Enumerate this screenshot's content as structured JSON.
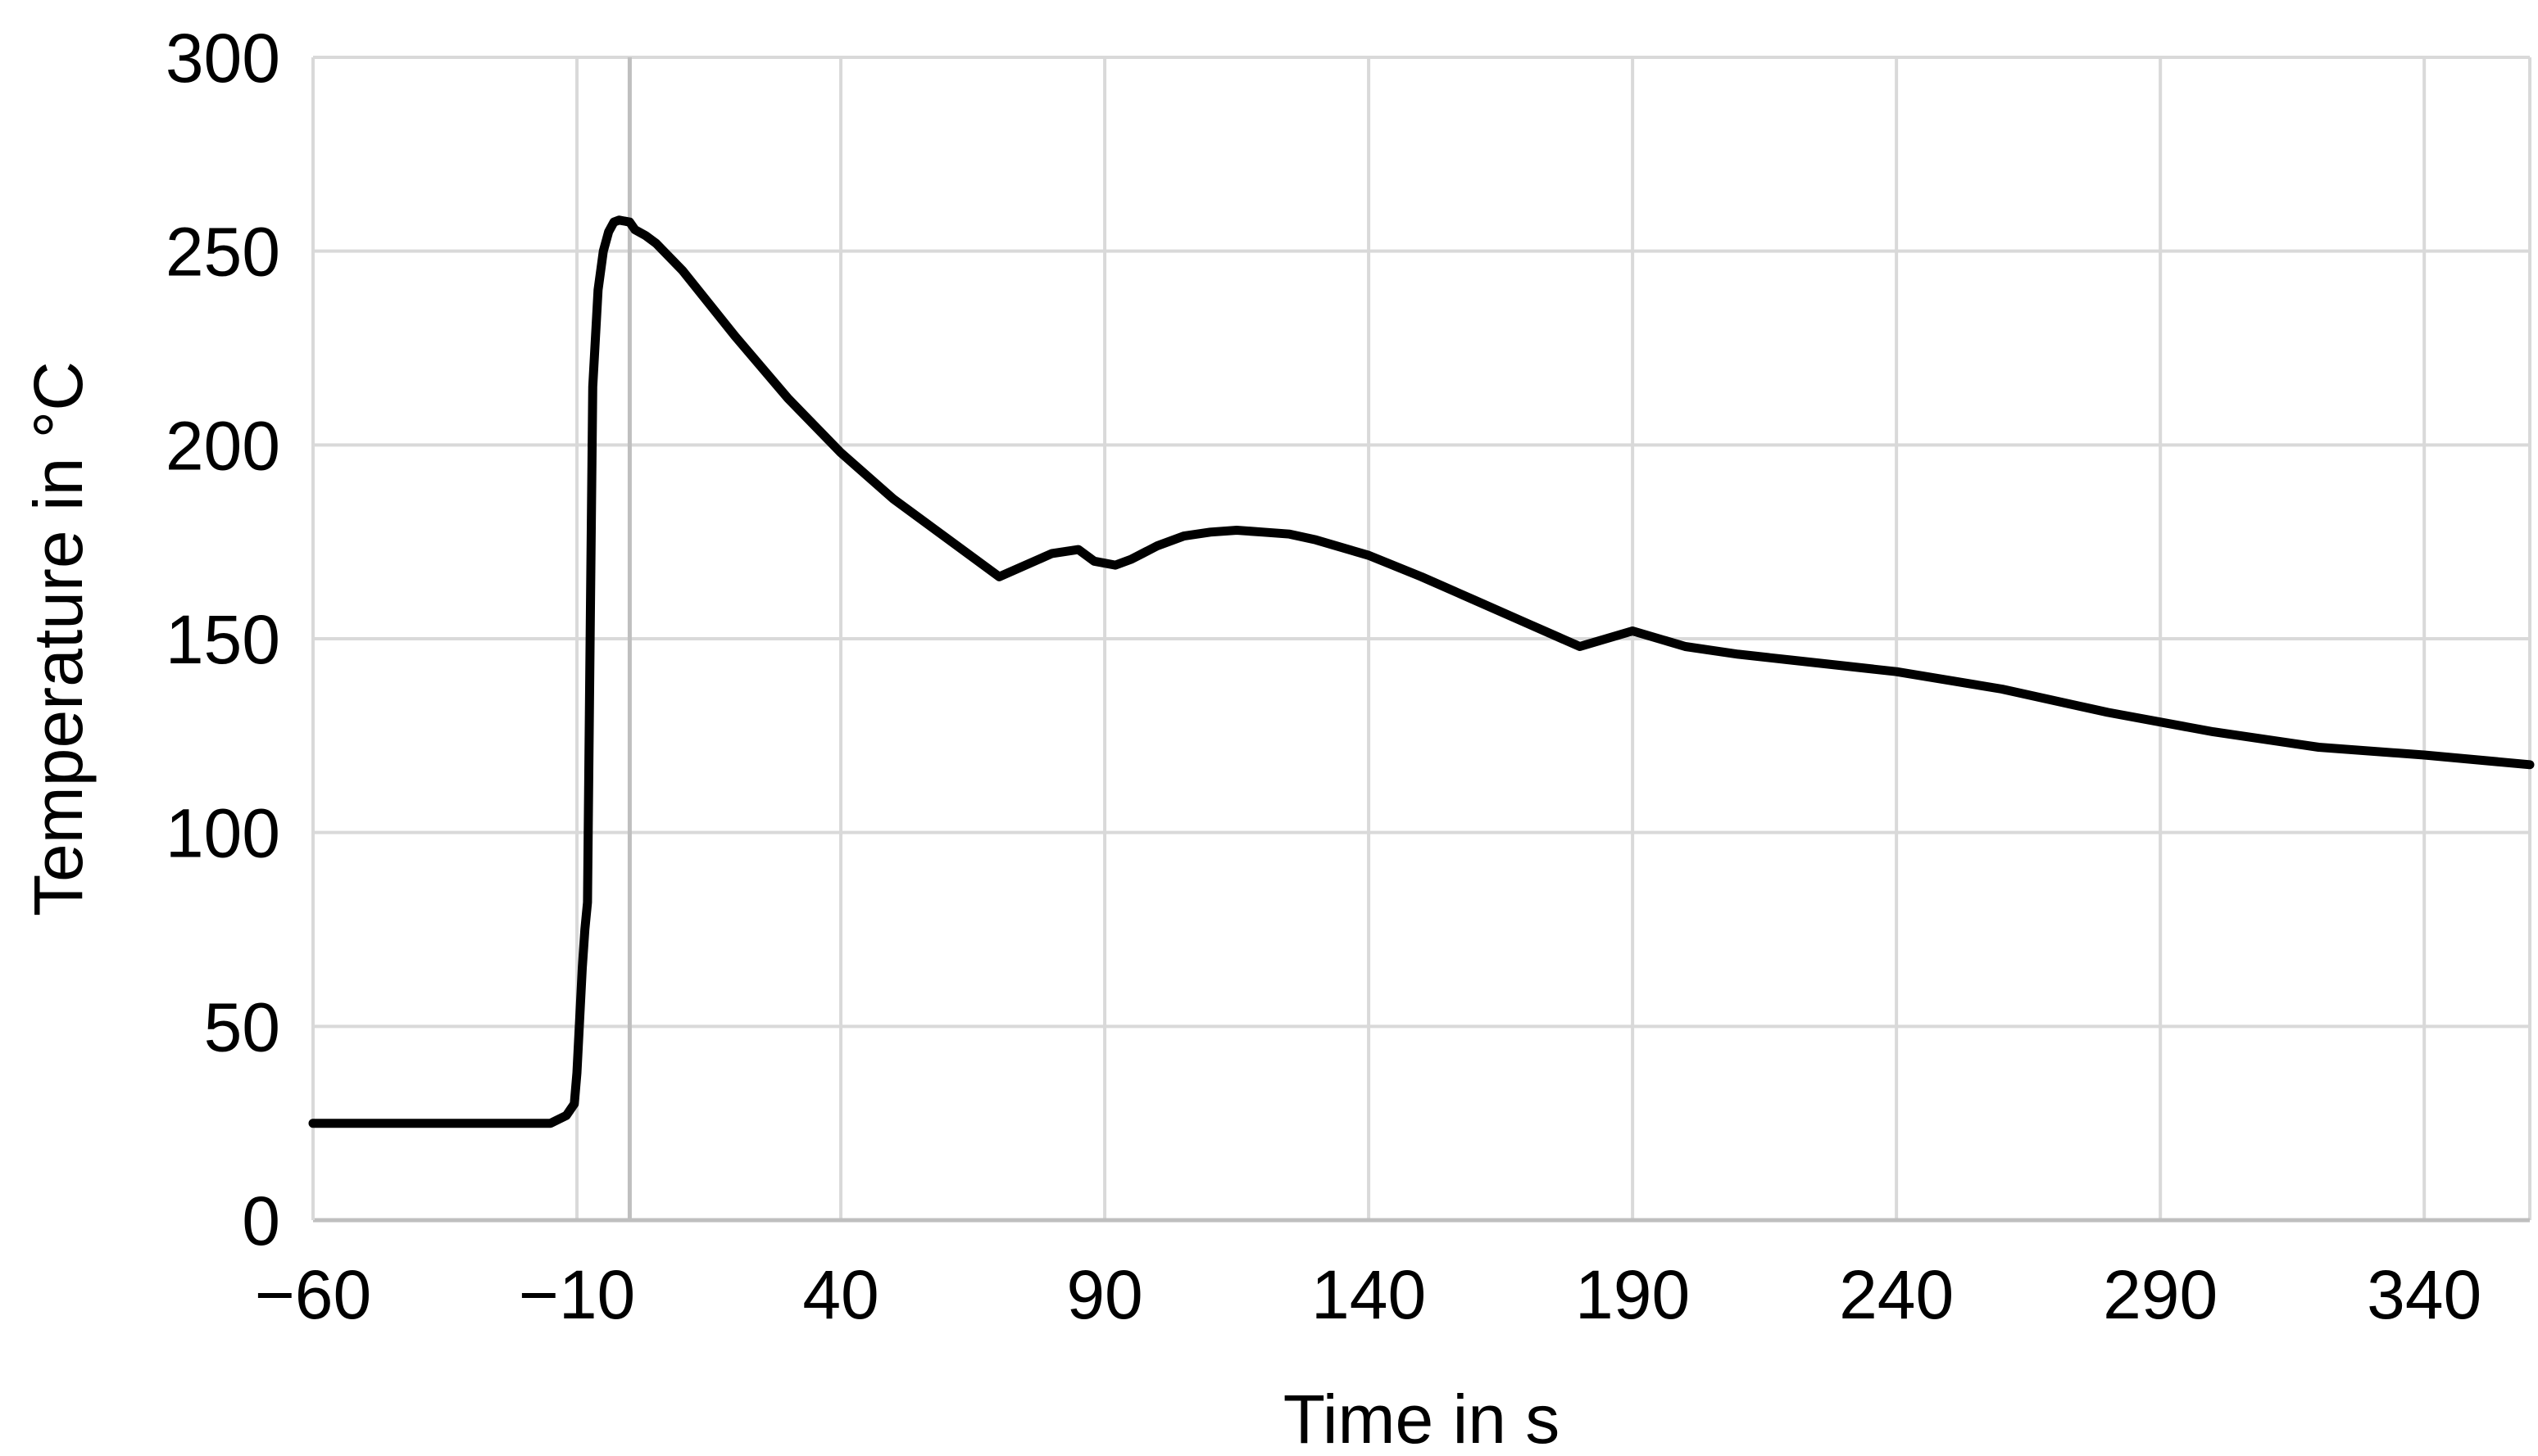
{
  "chart_data": {
    "type": "line",
    "title": "",
    "xlabel": "Time in s",
    "ylabel": "Temperature in °C",
    "xlim": [
      -60,
      360
    ],
    "ylim": [
      0,
      300
    ],
    "x_ticks": [
      -60,
      -10,
      40,
      90,
      140,
      190,
      240,
      290,
      340
    ],
    "x_tick_labels": [
      "−60",
      "−10",
      "40",
      "90",
      "140",
      "190",
      "240",
      "290",
      "340"
    ],
    "y_ticks": [
      0,
      50,
      100,
      150,
      200,
      250,
      300
    ],
    "y_tick_labels": [
      "0",
      "50",
      "100",
      "150",
      "200",
      "250",
      "300"
    ],
    "grid": true,
    "legend": "none",
    "reference_line_x": 0,
    "series": [
      {
        "color": "#000000",
        "x": [
          -60,
          -50,
          -40,
          -30,
          -20,
          -15,
          -12,
          -10.5,
          -10,
          -9,
          -8.5,
          -8,
          -7.5,
          -7,
          -6,
          -5,
          -4,
          -3,
          -2,
          0,
          1,
          3,
          5,
          10,
          20,
          30,
          40,
          50,
          60,
          70,
          80,
          85,
          88,
          92,
          95,
          100,
          105,
          110,
          115,
          120,
          125,
          130,
          140,
          150,
          160,
          170,
          180,
          190,
          200,
          210,
          220,
          240,
          260,
          280,
          300,
          320,
          340,
          360
        ],
        "y": [
          25,
          25,
          25,
          25,
          25,
          25,
          27,
          30,
          38,
          65,
          75,
          82,
          150,
          215,
          240,
          250,
          255,
          257.5,
          258,
          257.5,
          255.5,
          254,
          252,
          245,
          228,
          212,
          198,
          186,
          176,
          166,
          172,
          173,
          170,
          169,
          170.5,
          174,
          176.5,
          177.5,
          178,
          177.5,
          177,
          175.5,
          171.5,
          166,
          160,
          154,
          148,
          152,
          148,
          146,
          144.5,
          141.5,
          137,
          131,
          126,
          122,
          120,
          117.5
        ]
      }
    ]
  }
}
